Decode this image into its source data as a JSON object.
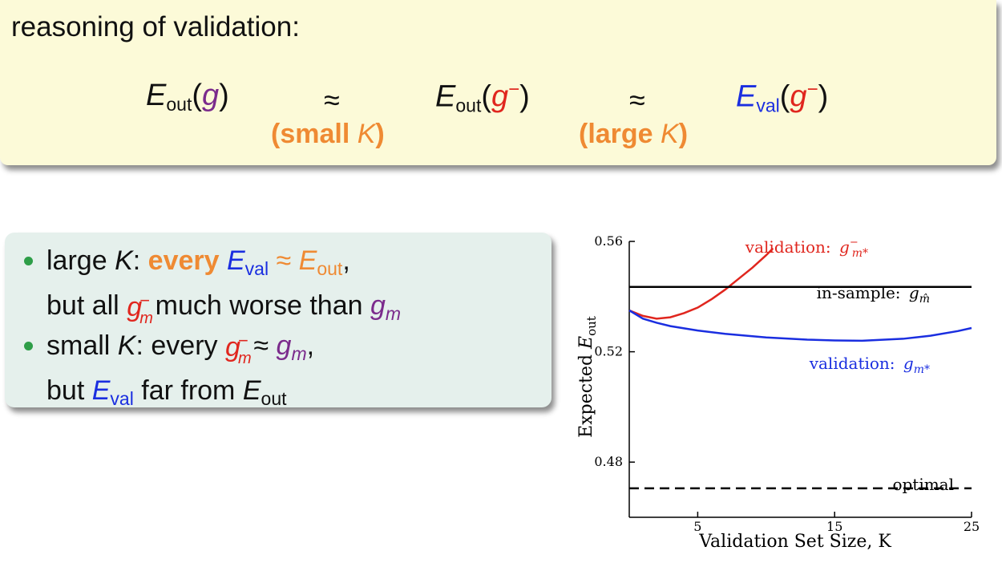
{
  "slide": {
    "heading": "reasoning of validation:",
    "formula": {
      "t1_E": "E",
      "t1_sub": "out",
      "t1_open": "(",
      "t1_g": "g",
      "t1_close": ")",
      "approx": "≈",
      "t2_E": "E",
      "t2_sub": "out",
      "t2_open": "(",
      "t2_g": "g",
      "t2_sup": "−",
      "t2_close": ")",
      "t3_E": "E",
      "t3_sub": "val",
      "t3_open": "(",
      "t3_g": "g",
      "t3_sup": "−",
      "t3_close": ")",
      "cond1_pre": "(small ",
      "cond1_K": "K",
      "cond1_post": ")",
      "cond2_pre": "(large ",
      "cond2_K": "K",
      "cond2_post": ")"
    },
    "bullets": [
      {
        "line1": {
          "a": "large ",
          "K": "K",
          "b": ": ",
          "every": "every ",
          "E": "E",
          "Esub": "val",
          "approx": " ≈ ",
          "E2": "E",
          "E2sub": "out",
          "end": ","
        },
        "line2": {
          "a": "but all ",
          "g": "g",
          "gsup": "−",
          "gsub": "m",
          "b": " much worse than ",
          "g2": "g",
          "g2sub": "m"
        }
      },
      {
        "line1": {
          "a": "small ",
          "K": "K",
          "b": ": every ",
          "g": "g",
          "gsup": "−",
          "gsub": "m",
          "approx": " ≈ ",
          "g2": "g",
          "g2sub": "m",
          "end": ","
        },
        "line2": {
          "a": "but ",
          "E": "E",
          "Esub": "val",
          "b": " far from ",
          "E2": "E",
          "E2sub": "out"
        }
      }
    ]
  },
  "chart_data": {
    "type": "line",
    "xlabel": "Validation Set Size, K",
    "ylabel": "Expected E_out",
    "xlim": [
      0,
      25
    ],
    "ylim": [
      0.46,
      0.56
    ],
    "xticks": [
      5,
      15,
      25
    ],
    "yticks": [
      0.48,
      0.52,
      0.56
    ],
    "ytick_labels": [
      "0.48",
      "0.52",
      "0.56"
    ],
    "xtick_labels": [
      "5",
      "15",
      "25"
    ],
    "series": [
      {
        "name": "validation: g⁻_{m*}",
        "color": "#e0261e",
        "style": "solid",
        "x": [
          0,
          1,
          2,
          3,
          4,
          5,
          6,
          7,
          8,
          9,
          10,
          10.5
        ],
        "y": [
          0.535,
          0.533,
          0.532,
          0.5325,
          0.534,
          0.536,
          0.539,
          0.5425,
          0.5465,
          0.5505,
          0.555,
          0.5575
        ]
      },
      {
        "name": "in-sample: g_{m̂}",
        "color": "#000000",
        "style": "solid",
        "x": [
          0,
          25
        ],
        "y": [
          0.5435,
          0.5435
        ]
      },
      {
        "name": "validation: g_{m*}",
        "color": "#1a2ee0",
        "style": "solid",
        "x": [
          0,
          1,
          2,
          3,
          5,
          7,
          10,
          13,
          15,
          17,
          20,
          22,
          24,
          25
        ],
        "y": [
          0.535,
          0.532,
          0.5305,
          0.5293,
          0.5277,
          0.5265,
          0.5252,
          0.5244,
          0.5241,
          0.524,
          0.5247,
          0.5258,
          0.5275,
          0.5286
        ]
      },
      {
        "name": "optimal",
        "color": "#000000",
        "style": "dashed",
        "x": [
          0,
          25
        ],
        "y": [
          0.4705,
          0.4705
        ]
      }
    ],
    "annotations": [
      {
        "label": "validation: ",
        "math_base": "g",
        "math_sup": "−",
        "math_sub": "m*",
        "color": "#e0261e",
        "series": 0
      },
      {
        "label": "in-sample: ",
        "math_base": "g",
        "math_sub": "m̂",
        "color": "#000000",
        "series": 1
      },
      {
        "label": "validation: ",
        "math_base": "g",
        "math_sub": "m*",
        "color": "#1a2ee0",
        "series": 2
      },
      {
        "label": "optimal",
        "color": "#000000",
        "series": 3
      }
    ]
  }
}
